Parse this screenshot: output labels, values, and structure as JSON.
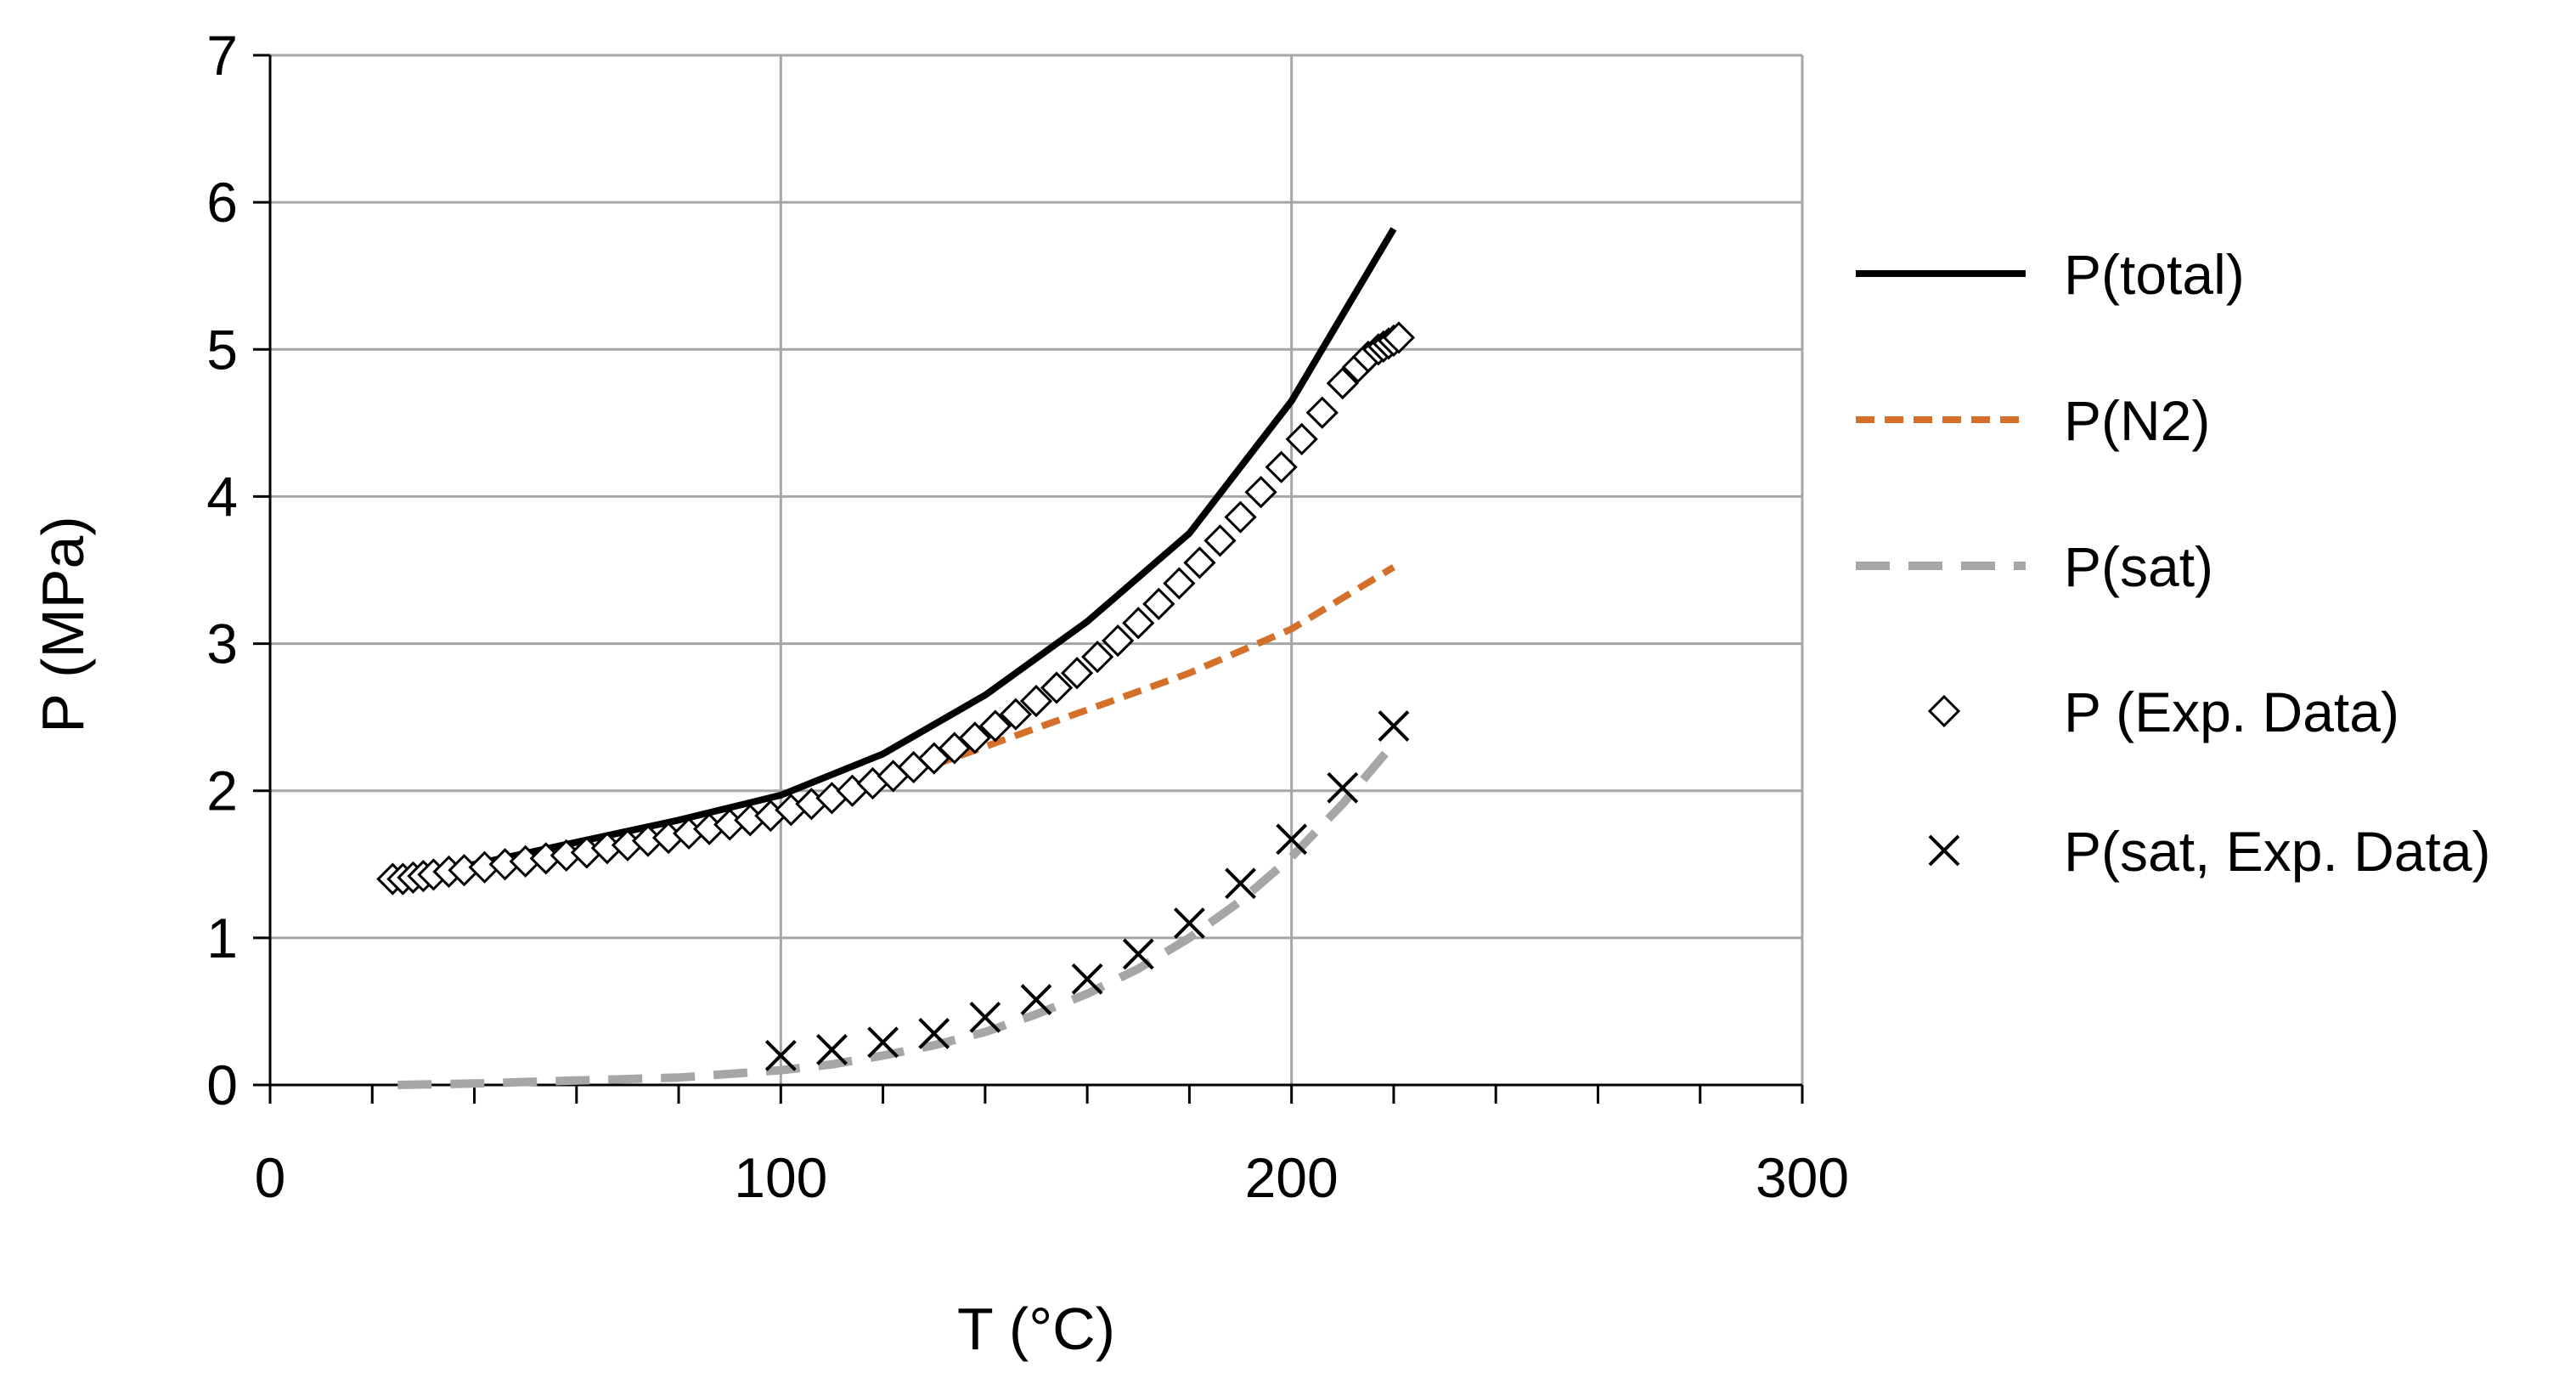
{
  "chart_data": {
    "type": "line",
    "title": "",
    "xlabel": "T (°C)",
    "ylabel": "P  (MPa)",
    "xlim": [
      0,
      300
    ],
    "ylim": [
      0,
      7
    ],
    "xticks": [
      0,
      100,
      200,
      300
    ],
    "yticks": [
      0,
      1,
      2,
      3,
      4,
      5,
      6,
      7
    ],
    "grid": true,
    "legend_position": "right",
    "series": [
      {
        "name": "P(total)",
        "kind": "line",
        "style": "solid",
        "color": "#000000",
        "x": [
          25,
          40,
          60,
          80,
          100,
          120,
          140,
          160,
          180,
          200,
          220
        ],
        "y": [
          1.4,
          1.5,
          1.65,
          1.8,
          1.97,
          2.25,
          2.65,
          3.15,
          3.75,
          4.65,
          5.82
        ]
      },
      {
        "name": "P(N2)",
        "kind": "line",
        "style": "dashed",
        "color": "#d4702a",
        "x": [
          25,
          40,
          60,
          80,
          100,
          120,
          140,
          160,
          180,
          200,
          220
        ],
        "y": [
          1.4,
          1.48,
          1.58,
          1.7,
          1.85,
          2.05,
          2.3,
          2.55,
          2.8,
          3.1,
          3.52
        ]
      },
      {
        "name": "P(sat)",
        "kind": "line",
        "style": "dashed",
        "color": "#a6a6a6",
        "x": [
          25,
          40,
          60,
          80,
          100,
          110,
          120,
          130,
          140,
          150,
          160,
          170,
          180,
          190,
          200,
          210,
          220
        ],
        "y": [
          0.0,
          0.01,
          0.03,
          0.05,
          0.1,
          0.14,
          0.2,
          0.27,
          0.36,
          0.48,
          0.62,
          0.79,
          1.0,
          1.25,
          1.55,
          1.91,
          2.32
        ]
      },
      {
        "name": "P (Exp. Data)",
        "kind": "scatter",
        "marker": "diamond",
        "color": "#000000",
        "x": [
          24,
          26,
          28,
          30,
          32,
          35,
          38,
          42,
          46,
          50,
          54,
          58,
          62,
          66,
          70,
          74,
          78,
          82,
          86,
          90,
          94,
          98,
          102,
          106,
          110,
          114,
          118,
          122,
          126,
          130,
          134,
          138,
          142,
          146,
          150,
          154,
          158,
          162,
          166,
          170,
          174,
          178,
          182,
          186,
          190,
          194,
          198,
          202,
          206,
          210,
          213,
          215,
          217,
          218,
          219,
          220,
          221
        ],
        "y": [
          1.4,
          1.4,
          1.41,
          1.42,
          1.43,
          1.45,
          1.46,
          1.48,
          1.5,
          1.52,
          1.54,
          1.56,
          1.58,
          1.61,
          1.63,
          1.66,
          1.68,
          1.71,
          1.74,
          1.77,
          1.8,
          1.83,
          1.87,
          1.91,
          1.95,
          2.0,
          2.05,
          2.1,
          2.16,
          2.22,
          2.29,
          2.36,
          2.44,
          2.52,
          2.61,
          2.7,
          2.8,
          2.91,
          3.02,
          3.14,
          3.27,
          3.41,
          3.55,
          3.7,
          3.86,
          4.03,
          4.2,
          4.39,
          4.57,
          4.77,
          4.88,
          4.95,
          5.0,
          5.02,
          5.04,
          5.06,
          5.08
        ]
      },
      {
        "name": "P(sat, Exp. Data)",
        "kind": "scatter",
        "marker": "x",
        "color": "#000000",
        "x": [
          100,
          110,
          120,
          130,
          140,
          150,
          160,
          170,
          180,
          190,
          200,
          210,
          220
        ],
        "y": [
          0.2,
          0.24,
          0.29,
          0.35,
          0.46,
          0.58,
          0.72,
          0.89,
          1.1,
          1.37,
          1.67,
          2.02,
          2.44
        ]
      }
    ]
  }
}
